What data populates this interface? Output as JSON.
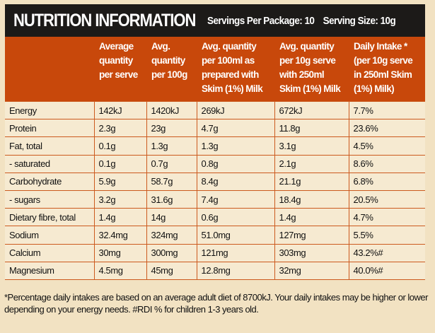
{
  "header": {
    "title": "NUTRITION INFORMATION",
    "servings_per_package": "Servings Per Package: 10",
    "serving_size": "Serving Size: 10g"
  },
  "columns": [
    "",
    "Average quantity per serve",
    "Avg. quantity per 100g",
    "Avg. quantity per 100ml as prepared with Skim (1%) Milk",
    "Avg. quantity per 10g serve with 250ml Skim (1%) Milk",
    "Daily Intake *(per 10g serve in 250ml Skim (1%) Milk)"
  ],
  "rows": [
    [
      "Energy",
      "142kJ",
      "1420kJ",
      "269kJ",
      "672kJ",
      "7.7%"
    ],
    [
      "Protein",
      "2.3g",
      "23g",
      "4.7g",
      "11.8g",
      "23.6%"
    ],
    [
      "Fat, total",
      "0.1g",
      "1.3g",
      "1.3g",
      "3.1g",
      "4.5%"
    ],
    [
      "- saturated",
      "0.1g",
      "0.7g",
      "0.8g",
      "2.1g",
      "8.6%"
    ],
    [
      "Carbohydrate",
      "5.9g",
      "58.7g",
      "8.4g",
      "21.1g",
      "6.8%"
    ],
    [
      "- sugars",
      "3.2g",
      "31.6g",
      "7.4g",
      "18.4g",
      "20.5%"
    ],
    [
      "Dietary fibre, total",
      "1.4g",
      "14g",
      "0.6g",
      "1.4g",
      "4.7%"
    ],
    [
      "Sodium",
      "32.4mg",
      "324mg",
      "51.0mg",
      "127mg",
      "5.5%"
    ],
    [
      "Calcium",
      "30mg",
      "300mg",
      "121mg",
      "303mg",
      "43.2%#"
    ],
    [
      "Magnesium",
      "4.5mg",
      "45mg",
      "12.8mg",
      "32mg",
      "40.0%#"
    ]
  ],
  "footnote": "*Percentage daily intakes are based on an average adult diet of 8700kJ.  Your daily intakes may be higher or lower depending on your energy needs. #RDI % for children 1-3 years old."
}
